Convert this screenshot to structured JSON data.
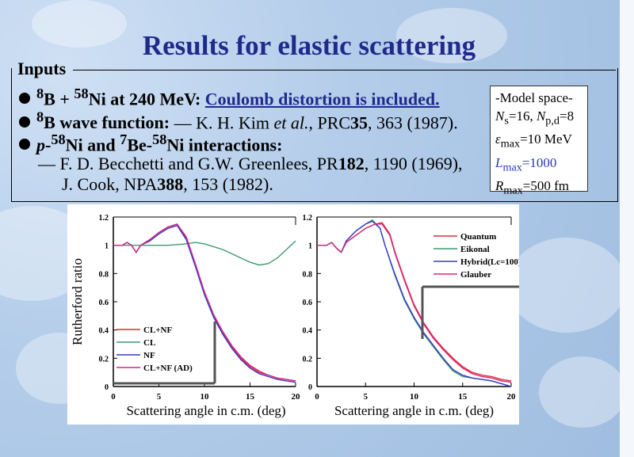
{
  "title": "Results for elastic scattering",
  "inputs_heading": "Inputs",
  "bullets": {
    "b1": {
      "sup_b": "8",
      "b": "B + ",
      "sup_ni": "58",
      "rest": "Ni at 240 MeV: ",
      "link": "Coulomb distortion is included."
    },
    "b2": {
      "sup": "8",
      "label": "B wave function: ",
      "dash": "— K. H. Kim ",
      "etal": "et al.",
      "ref": ", PRC",
      "vol": "35",
      "page": ", 363 (1987)."
    },
    "b3": {
      "p": "p",
      "dash1": "-",
      "sup1": "58",
      "ni1": "Ni and ",
      "sup2": "7",
      "be": "Be-",
      "sup3": "58",
      "ni2": "Ni interactions:"
    },
    "ref1": {
      "dash": "— F. D. Becchetti and G.W. Greenlees, PR",
      "vol": "182",
      "rest": ", 1190 (1969),"
    },
    "ref2": {
      "start": "J. Cook, NPA",
      "vol": "388",
      "rest": ", 153 (1982)."
    }
  },
  "model_space": {
    "heading": "-Model space-",
    "ns": {
      "sym": "N",
      "sub": "s",
      "val": "=16, ",
      "sym2": "N",
      "sub2": "p,d",
      "val2": "=8"
    },
    "emax": {
      "sym": "ε",
      "sub": "max",
      "val": "=10 MeV"
    },
    "lmax": {
      "sym": "L",
      "sub": "max",
      "val": "=1000"
    },
    "rmax": {
      "sym": "R",
      "sub": "max",
      "val": "=500 fm"
    }
  },
  "colors": {
    "title": "#1f2a8c",
    "lmax": "#2a38b8",
    "red": "#e4283c",
    "green": "#3d9a6a",
    "blue": "#3a3aca",
    "magenta": "#d22a7a"
  },
  "chart_data": [
    {
      "type": "line",
      "title": "",
      "xlabel": "Scattering angle in c.m. (deg)",
      "ylabel": "Rutherford ratio",
      "xlim": [
        0,
        20
      ],
      "ylim": [
        0,
        1.2
      ],
      "xticks": [
        "0",
        "5",
        "10",
        "15",
        "20"
      ],
      "yticks": [
        "0",
        "0.2",
        "0.4",
        "0.6",
        "0.8",
        "1",
        "1.2"
      ],
      "legend_position": "bottom-left",
      "series": [
        {
          "name": "CL+NF",
          "color": "#e4283c",
          "points": [
            [
              0,
              1.0
            ],
            [
              1,
              1.0
            ],
            [
              1.5,
              1.02
            ],
            [
              2,
              1.0
            ],
            [
              2.5,
              0.95
            ],
            [
              3,
              1.0
            ],
            [
              4,
              1.04
            ],
            [
              5,
              1.09
            ],
            [
              6,
              1.13
            ],
            [
              7,
              1.15
            ],
            [
              8,
              1.05
            ],
            [
              9,
              0.86
            ],
            [
              10,
              0.66
            ],
            [
              11,
              0.5
            ],
            [
              12,
              0.38
            ],
            [
              13,
              0.28
            ],
            [
              14,
              0.2
            ],
            [
              15,
              0.14
            ],
            [
              16,
              0.1
            ],
            [
              17,
              0.08
            ],
            [
              18,
              0.06
            ],
            [
              19,
              0.05
            ],
            [
              20,
              0.04
            ]
          ]
        },
        {
          "name": "CL",
          "color": "#3d9a6a",
          "points": [
            [
              0,
              1.0
            ],
            [
              2,
              1.0
            ],
            [
              4,
              1.0
            ],
            [
              6,
              1.0
            ],
            [
              8,
              1.01
            ],
            [
              9,
              1.02
            ],
            [
              10,
              1.01
            ],
            [
              12,
              0.97
            ],
            [
              14,
              0.91
            ],
            [
              15,
              0.88
            ],
            [
              16,
              0.86
            ],
            [
              17,
              0.87
            ],
            [
              18,
              0.91
            ],
            [
              19,
              0.97
            ],
            [
              20,
              1.03
            ]
          ]
        },
        {
          "name": "NF",
          "color": "#3a3aca",
          "points": [
            [
              0,
              1.0
            ],
            [
              1,
              1.0
            ],
            [
              1.5,
              1.02
            ],
            [
              2,
              1.0
            ],
            [
              2.5,
              0.95
            ],
            [
              3,
              1.0
            ],
            [
              4,
              1.03
            ],
            [
              5,
              1.08
            ],
            [
              6,
              1.12
            ],
            [
              7,
              1.14
            ],
            [
              8,
              1.04
            ],
            [
              9,
              0.85
            ],
            [
              10,
              0.65
            ],
            [
              11,
              0.49
            ],
            [
              12,
              0.37
            ],
            [
              13,
              0.27
            ],
            [
              14,
              0.19
            ],
            [
              15,
              0.13
            ],
            [
              16,
              0.09
            ],
            [
              17,
              0.07
            ],
            [
              18,
              0.05
            ],
            [
              19,
              0.04
            ],
            [
              20,
              0.03
            ]
          ]
        },
        {
          "name": "CL+NF (AD)",
          "color": "#d22a7a",
          "points": [
            [
              0,
              1.0
            ],
            [
              1,
              1.0
            ],
            [
              1.5,
              1.02
            ],
            [
              2,
              1.0
            ],
            [
              2.5,
              0.95
            ],
            [
              3,
              1.0
            ],
            [
              4,
              1.04
            ],
            [
              5,
              1.09
            ],
            [
              6,
              1.13
            ],
            [
              7,
              1.15
            ],
            [
              8,
              1.06
            ],
            [
              9,
              0.87
            ],
            [
              10,
              0.67
            ],
            [
              11,
              0.51
            ],
            [
              12,
              0.39
            ],
            [
              13,
              0.29
            ],
            [
              14,
              0.21
            ],
            [
              15,
              0.15
            ],
            [
              16,
              0.11
            ],
            [
              17,
              0.08
            ],
            [
              18,
              0.06
            ],
            [
              19,
              0.05
            ],
            [
              20,
              0.04
            ]
          ]
        }
      ]
    },
    {
      "type": "line",
      "title": "",
      "xlabel": "Scattering angle in c.m. (deg)",
      "ylabel": "",
      "xlim": [
        0,
        20
      ],
      "ylim": [
        0,
        1.2
      ],
      "xticks": [
        "0",
        "5",
        "10",
        "15",
        "20"
      ],
      "yticks": [
        "0",
        "0.2",
        "0.4",
        "0.6",
        "0.8",
        "1",
        "1.2"
      ],
      "legend_position": "top-right",
      "series": [
        {
          "name": "Quantum",
          "color": "#e4283c",
          "points": [
            [
              0,
              1.0
            ],
            [
              1,
              1.0
            ],
            [
              1.5,
              1.02
            ],
            [
              2,
              0.98
            ],
            [
              2.5,
              0.95
            ],
            [
              3,
              1.02
            ],
            [
              4,
              1.07
            ],
            [
              5,
              1.12
            ],
            [
              6,
              1.15
            ],
            [
              6.7,
              1.16
            ],
            [
              7.5,
              1.08
            ],
            [
              8,
              0.96
            ],
            [
              9,
              0.76
            ],
            [
              10,
              0.58
            ],
            [
              11,
              0.45
            ],
            [
              12,
              0.35
            ],
            [
              13,
              0.27
            ],
            [
              14,
              0.2
            ],
            [
              15,
              0.14
            ],
            [
              16,
              0.1
            ],
            [
              17,
              0.08
            ],
            [
              18,
              0.07
            ],
            [
              19,
              0.05
            ],
            [
              20,
              0.04
            ]
          ]
        },
        {
          "name": "Eikonal",
          "color": "#3d9a6a",
          "points": [
            [
              0,
              1.0
            ],
            [
              1,
              1.0
            ],
            [
              1.5,
              1.02
            ],
            [
              2,
              0.98
            ],
            [
              2.5,
              0.95
            ],
            [
              3,
              1.03
            ],
            [
              4,
              1.1
            ],
            [
              5,
              1.15
            ],
            [
              5.7,
              1.18
            ],
            [
              6.5,
              1.12
            ],
            [
              7,
              1.0
            ],
            [
              8,
              0.79
            ],
            [
              9,
              0.61
            ],
            [
              10,
              0.48
            ],
            [
              11,
              0.37
            ],
            [
              12,
              0.28
            ],
            [
              13,
              0.19
            ],
            [
              14,
              0.11
            ],
            [
              15,
              0.07
            ],
            [
              16,
              0.06
            ],
            [
              17,
              0.05
            ],
            [
              18,
              0.04
            ],
            [
              19,
              0.02
            ],
            [
              20,
              0.0
            ]
          ]
        },
        {
          "name": "Hybrid(Lc=100)",
          "color": "#3a3aca",
          "points": [
            [
              0,
              1.0
            ],
            [
              1,
              1.0
            ],
            [
              1.5,
              1.02
            ],
            [
              2,
              0.98
            ],
            [
              2.5,
              0.95
            ],
            [
              3,
              1.03
            ],
            [
              4,
              1.1
            ],
            [
              5,
              1.15
            ],
            [
              5.7,
              1.17
            ],
            [
              6.5,
              1.12
            ],
            [
              7,
              1.0
            ],
            [
              8,
              0.8
            ],
            [
              9,
              0.62
            ],
            [
              10,
              0.49
            ],
            [
              11,
              0.38
            ],
            [
              12,
              0.29
            ],
            [
              13,
              0.2
            ],
            [
              14,
              0.12
            ],
            [
              15,
              0.08
            ],
            [
              16,
              0.06
            ],
            [
              17,
              0.05
            ],
            [
              18,
              0.04
            ],
            [
              19,
              0.02
            ],
            [
              20,
              0.0
            ]
          ]
        },
        {
          "name": "Glauber",
          "color": "#d22a7a",
          "points": [
            [
              0,
              1.0
            ],
            [
              1,
              1.0
            ],
            [
              1.5,
              1.02
            ],
            [
              2,
              0.98
            ],
            [
              2.5,
              0.95
            ],
            [
              3,
              1.02
            ],
            [
              4,
              1.07
            ],
            [
              5,
              1.12
            ],
            [
              6,
              1.15
            ],
            [
              6.7,
              1.15
            ],
            [
              7.5,
              1.07
            ],
            [
              8,
              0.95
            ],
            [
              9,
              0.75
            ],
            [
              10,
              0.57
            ],
            [
              11,
              0.44
            ],
            [
              12,
              0.34
            ],
            [
              13,
              0.26
            ],
            [
              14,
              0.19
            ],
            [
              15,
              0.13
            ],
            [
              16,
              0.09
            ],
            [
              17,
              0.07
            ],
            [
              18,
              0.06
            ],
            [
              19,
              0.04
            ],
            [
              20,
              0.03
            ]
          ]
        }
      ]
    }
  ]
}
